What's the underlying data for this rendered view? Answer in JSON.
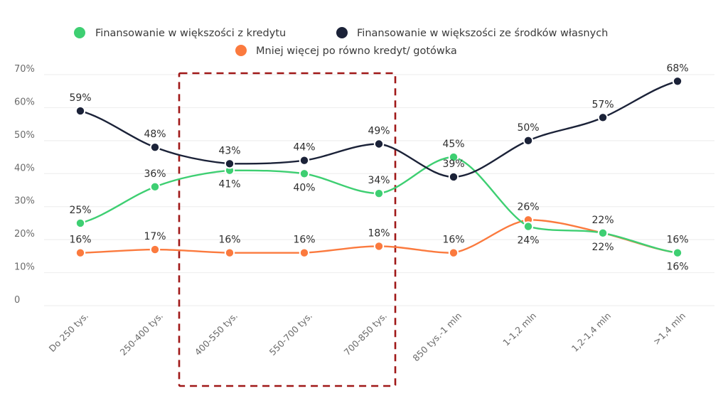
{
  "chart_data": {
    "type": "line",
    "title": "",
    "xlabel": "",
    "ylabel": "",
    "ylim": [
      0,
      70
    ],
    "grid": true,
    "legend_position": "top-center",
    "y_ticks": [
      {
        "value": 0,
        "label": "0"
      },
      {
        "value": 10,
        "label": "10%"
      },
      {
        "value": 20,
        "label": "20%"
      },
      {
        "value": 30,
        "label": "30%"
      },
      {
        "value": 40,
        "label": "40%"
      },
      {
        "value": 50,
        "label": "50%"
      },
      {
        "value": 60,
        "label": "60%"
      },
      {
        "value": 70,
        "label": "70%"
      }
    ],
    "categories": [
      "Do 250 tys.",
      "250-400 tys.",
      "400-550 tys.",
      "550-700 tys.",
      "700-850 tys.",
      "850 tys.-1 mln",
      "1-1,2 mln",
      "1,2-1,4 mln",
      ">1,4 mln"
    ],
    "series": [
      {
        "name": "Finansowanie w większości z kredytu",
        "color": "#3ecf72",
        "values": [
          25,
          36,
          41,
          40,
          34,
          45,
          24,
          22,
          16
        ],
        "labels": [
          "25%",
          "36%",
          "41%",
          "40%",
          "34%",
          "45%",
          "24%",
          "22%",
          "16%"
        ],
        "label_side": [
          "above",
          "above",
          "below",
          "below",
          "above",
          "above",
          "below",
          "below",
          "below"
        ]
      },
      {
        "name": "Finansowanie w większości ze środków własnych",
        "color": "#1b2238",
        "values": [
          59,
          48,
          43,
          44,
          49,
          39,
          50,
          57,
          68
        ],
        "labels": [
          "59%",
          "48%",
          "43%",
          "44%",
          "49%",
          "39%",
          "50%",
          "57%",
          "68%"
        ],
        "label_side": [
          "above",
          "above",
          "above",
          "above",
          "above",
          "above",
          "above",
          "above",
          "above"
        ]
      },
      {
        "name": "Mniej więcej po równo kredyt/ gotówka",
        "color": "#fb7a3e",
        "values": [
          16,
          17,
          16,
          16,
          18,
          16,
          26,
          22,
          16
        ],
        "labels": [
          "16%",
          "17%",
          "16%",
          "16%",
          "18%",
          "16%",
          "26%",
          "22%",
          "16%"
        ],
        "label_side": [
          "above",
          "above",
          "above",
          "above",
          "above",
          "above",
          "above",
          "above",
          "above"
        ]
      }
    ],
    "annotations": [
      {
        "type": "dashed-box",
        "color": "#a01818",
        "from_category": "400-550 tys.",
        "to_category": "700-850 tys."
      }
    ]
  }
}
